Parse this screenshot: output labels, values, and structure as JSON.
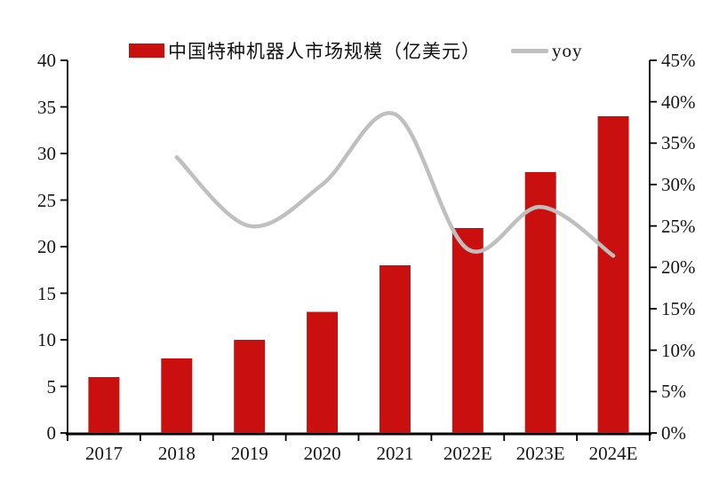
{
  "chart_data": {
    "type": "combo",
    "title": "",
    "categories": [
      "2017",
      "2018",
      "2019",
      "2020",
      "2021",
      "2022E",
      "2023E",
      "2024E"
    ],
    "series": [
      {
        "name": "中国特种机器人市场规模（亿美元）",
        "type": "bar",
        "axis": "left",
        "color": "#c9100e",
        "values": [
          6,
          8,
          10,
          13,
          18,
          22,
          28,
          34
        ]
      },
      {
        "name": "yoy",
        "type": "line",
        "axis": "right",
        "unit": "%",
        "color": "#bfbfbf",
        "values": [
          null,
          33.3,
          25.0,
          30.0,
          38.5,
          22.2,
          27.3,
          21.4
        ]
      }
    ],
    "left_axis": {
      "min": 0,
      "max": 40,
      "step": 5,
      "tick_labels": [
        "0",
        "5",
        "10",
        "15",
        "20",
        "25",
        "30",
        "35",
        "40"
      ]
    },
    "right_axis": {
      "min": 0,
      "max": 45,
      "step": 5,
      "tick_labels": [
        "0%",
        "5%",
        "10%",
        "15%",
        "20%",
        "25%",
        "30%",
        "35%",
        "40%",
        "45%"
      ]
    },
    "grid": false,
    "legend_position": "top"
  },
  "colors": {
    "bar": "#c9100e",
    "line": "#bfbfbf",
    "axis": "#000000",
    "text": "#151515",
    "background": "#ffffff"
  }
}
